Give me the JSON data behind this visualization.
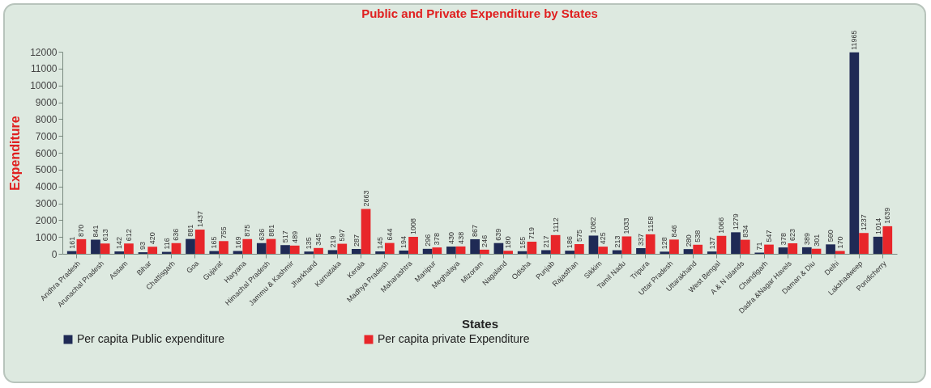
{
  "chart_data": {
    "type": "bar",
    "title": "Public and Private Expenditure by States",
    "xlabel": "States",
    "ylabel": "Expenditure",
    "categories": [
      "Andhra Pradesh",
      "Arunachal Pradesh",
      "Assam",
      "Bihar",
      "Chattisgarh",
      "Goa",
      "Gujarat",
      "Haryana",
      "Himachal Pradesh",
      "Jammu & Kashmir",
      "Jharkhand",
      "Karnataka",
      "Kerala",
      "Madhya Pradesh",
      "Maharashtra",
      "Manipur",
      "Meghalaya",
      "Mizoram",
      "Nagaland",
      "Odisha",
      "Punjab",
      "Rajasthan",
      "Sikkim",
      "Tamil Nadu",
      "Tripura",
      "Uttar Pradesh",
      "Uttarakhand",
      "West Bengal",
      "A & N  Islands",
      "Chandigarh",
      "Dadra &Nagar  Havels",
      "Daman & Diu",
      "Delhi",
      "Lakshadweep",
      "Pondicherry"
    ],
    "series": [
      {
        "name": "Per capita Public expenditure",
        "color": "#1f2a55",
        "values": [
          161,
          841,
          142,
          93,
          116,
          881,
          165,
          169,
          636,
          517,
          135,
          219,
          287,
          145,
          194,
          296,
          430,
          867,
          639,
          155,
          217,
          186,
          1082,
          213,
          337,
          128,
          280,
          137,
          1279,
          71,
          378,
          389,
          560,
          11965,
          1014
        ]
      },
      {
        "name": "Per capita private Expenditure",
        "color": "#e8262a",
        "values": [
          870,
          613,
          612,
          420,
          636,
          1437,
          755,
          875,
          881,
          489,
          345,
          597,
          2663,
          644,
          1008,
          378,
          438,
          246,
          180,
          719,
          1112,
          575,
          425,
          1033,
          1158,
          846,
          538,
          1066,
          834,
          547,
          623,
          301,
          170,
          1237,
          1639
        ]
      }
    ],
    "ylim": [
      0,
      12000
    ],
    "yticks": [
      0,
      1000,
      2000,
      3000,
      4000,
      5000,
      6000,
      7000,
      8000,
      9000,
      10000,
      11000,
      12000
    ],
    "grid": false,
    "legend": "bottom",
    "data_labels": true
  }
}
